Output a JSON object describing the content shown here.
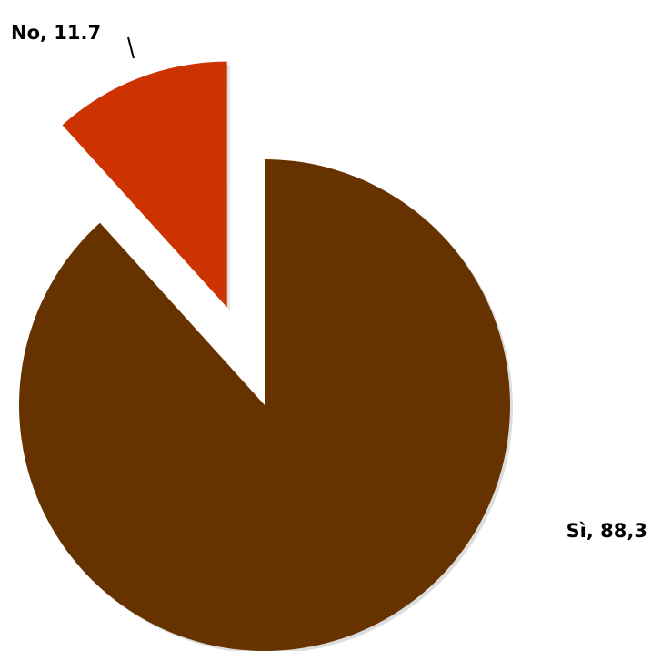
{
  "chart_data": {
    "type": "pie",
    "slices": [
      {
        "label": "No, 11.7",
        "value": 11.7,
        "color": "#cc3300",
        "exploded": true
      },
      {
        "label": "Sì, 88,3",
        "value": 88.3,
        "color": "#663300",
        "exploded": false
      }
    ],
    "start_angle_deg": 0,
    "direction": "clockwise",
    "legend": "none"
  }
}
